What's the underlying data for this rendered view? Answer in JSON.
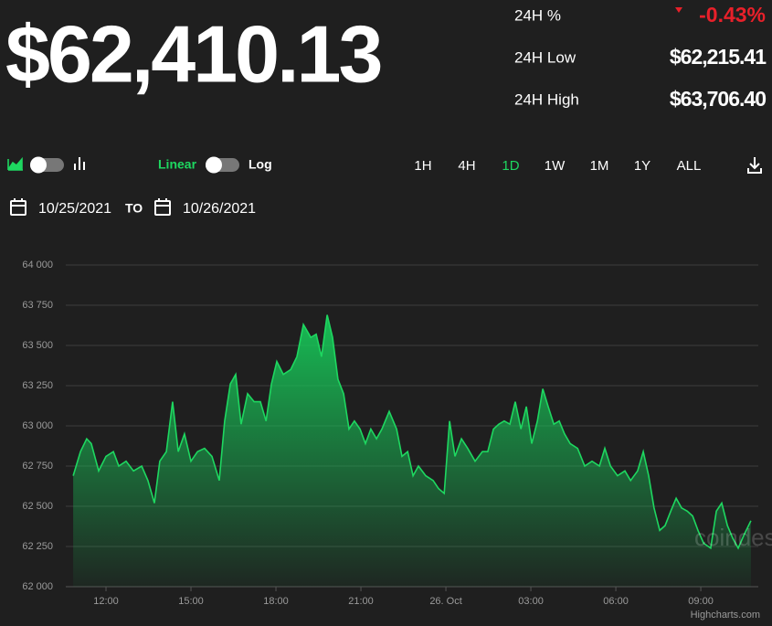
{
  "header": {
    "price": "$62,410.13",
    "stats": [
      {
        "label": "24H %",
        "value": "-0.43%"
      },
      {
        "label": "24H Low",
        "value": "$62,215.41"
      },
      {
        "label": "24H High",
        "value": "$63,706.40"
      }
    ]
  },
  "controls": {
    "scales": [
      "Linear",
      "Log"
    ],
    "ranges": [
      "1H",
      "4H",
      "1D",
      "1W",
      "1M",
      "1Y",
      "ALL"
    ],
    "selected_range": "1D",
    "date_from": "10/25/2021",
    "date_separator": "TO",
    "date_to": "10/26/2021"
  },
  "watermark": "coindesk",
  "credit": "Highcharts.com",
  "chart_data": {
    "type": "area",
    "grid": true,
    "xlim": [
      10.58,
      35.03
    ],
    "xticks": [
      {
        "value": 12,
        "label": "12:00"
      },
      {
        "value": 15,
        "label": "15:00"
      },
      {
        "value": 18,
        "label": "18:00"
      },
      {
        "value": 21,
        "label": "21:00"
      },
      {
        "value": 24,
        "label": "26. Oct"
      },
      {
        "value": 27,
        "label": "03:00"
      },
      {
        "value": 30,
        "label": "06:00"
      },
      {
        "value": 33,
        "label": "09:00"
      }
    ],
    "ylim": [
      62000,
      64000
    ],
    "yticks": [
      {
        "value": 62000,
        "label": "62 000"
      },
      {
        "value": 62250,
        "label": "62 250"
      },
      {
        "value": 62500,
        "label": "62 500"
      },
      {
        "value": 62750,
        "label": "62 750"
      },
      {
        "value": 63000,
        "label": "63 000"
      },
      {
        "value": 63250,
        "label": "63 250"
      },
      {
        "value": 63500,
        "label": "63 500"
      },
      {
        "value": 63750,
        "label": "63 750"
      },
      {
        "value": 64000,
        "label": "64 000"
      }
    ],
    "series": [
      {
        "color": "#1ed760",
        "x": [
          10.84,
          11.1,
          11.32,
          11.48,
          11.74,
          12.0,
          12.26,
          12.45,
          12.71,
          12.97,
          13.26,
          13.48,
          13.71,
          13.9,
          14.13,
          14.35,
          14.55,
          14.77,
          15.0,
          15.23,
          15.48,
          15.74,
          16.0,
          16.19,
          16.39,
          16.58,
          16.77,
          17.0,
          17.23,
          17.45,
          17.65,
          17.84,
          18.03,
          18.26,
          18.52,
          18.74,
          18.97,
          19.23,
          19.42,
          19.61,
          19.81,
          20.0,
          20.19,
          20.39,
          20.58,
          20.77,
          20.97,
          21.16,
          21.35,
          21.55,
          21.74,
          22.0,
          22.26,
          22.45,
          22.65,
          22.84,
          23.03,
          23.29,
          23.55,
          23.74,
          23.94,
          24.13,
          24.32,
          24.55,
          24.77,
          25.03,
          25.29,
          25.48,
          25.68,
          25.87,
          26.06,
          26.26,
          26.45,
          26.65,
          26.84,
          27.03,
          27.23,
          27.42,
          27.61,
          27.81,
          28.0,
          28.19,
          28.39,
          28.65,
          28.9,
          29.16,
          29.42,
          29.61,
          29.81,
          30.06,
          30.32,
          30.52,
          30.77,
          30.97,
          31.16,
          31.35,
          31.55,
          31.74,
          31.94,
          32.13,
          32.32,
          32.52,
          32.71,
          32.9,
          33.1,
          33.35,
          33.55,
          33.74,
          33.94,
          34.13,
          34.32,
          34.52,
          34.77
        ],
        "values": [
          62690,
          62840,
          62920,
          62890,
          62720,
          62810,
          62840,
          62750,
          62780,
          62720,
          62750,
          62660,
          62520,
          62780,
          62840,
          63150,
          62840,
          62950,
          62780,
          62840,
          62860,
          62810,
          62660,
          63030,
          63260,
          63320,
          63010,
          63200,
          63150,
          63150,
          63030,
          63260,
          63400,
          63320,
          63350,
          63430,
          63630,
          63550,
          63570,
          63430,
          63690,
          63550,
          63290,
          63200,
          62980,
          63030,
          62980,
          62890,
          62980,
          62920,
          62980,
          63090,
          62980,
          62810,
          62840,
          62690,
          62750,
          62690,
          62660,
          62610,
          62580,
          63030,
          62810,
          62920,
          62860,
          62780,
          62840,
          62840,
          62980,
          63010,
          63030,
          63010,
          63150,
          62980,
          63120,
          62890,
          63030,
          63230,
          63120,
          63010,
          63030,
          62950,
          62890,
          62860,
          62750,
          62780,
          62750,
          62860,
          62750,
          62690,
          62720,
          62660,
          62720,
          62840,
          62690,
          62490,
          62350,
          62380,
          62470,
          62550,
          62490,
          62470,
          62440,
          62350,
          62270,
          62240,
          62470,
          62520,
          62380,
          62300,
          62240,
          62320,
          62410
        ]
      }
    ]
  }
}
